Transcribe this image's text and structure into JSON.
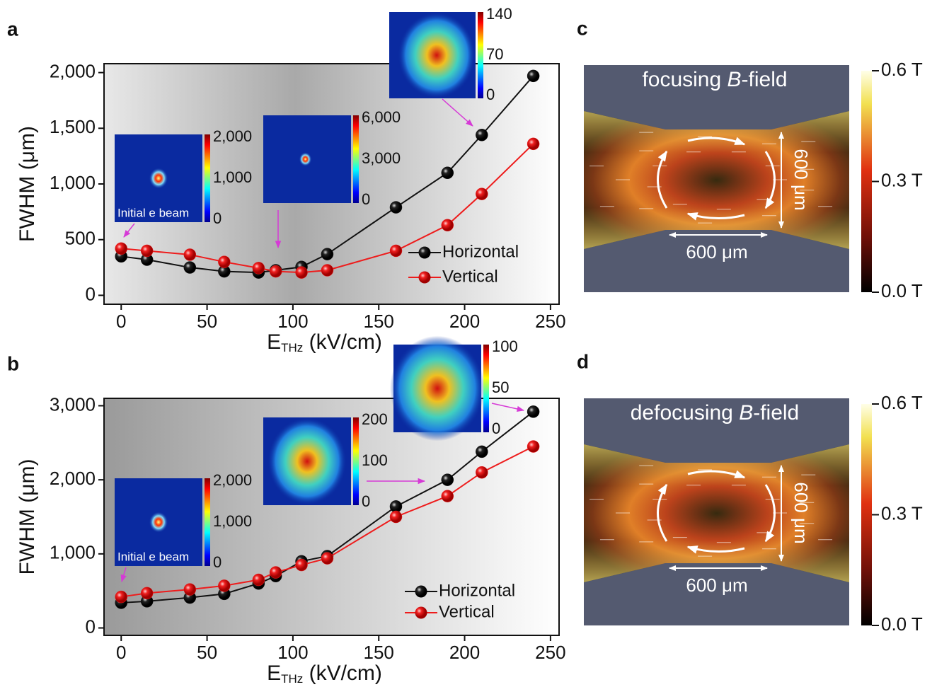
{
  "chart_data": [
    {
      "type": "line",
      "label": "a",
      "ylabel": "FWHM (μm)",
      "xlabel": "E",
      "xlabel_sub": "THz",
      "xlabel_rest": " (kV/cm)",
      "x": [
        0,
        15,
        40,
        60,
        80,
        90,
        105,
        120,
        160,
        190,
        210,
        240
      ],
      "series": [
        {
          "name": "Horizontal",
          "color": "#111111",
          "values": [
            350,
            320,
            250,
            215,
            205,
            225,
            255,
            370,
            790,
            1100,
            1440,
            1970
          ]
        },
        {
          "name": "Vertical",
          "color": "#ee1c1c",
          "values": [
            420,
            400,
            365,
            300,
            245,
            215,
            205,
            225,
            400,
            630,
            910,
            1360
          ]
        }
      ],
      "xlim": [
        -10,
        255
      ],
      "ylim": [
        -80,
        2080
      ],
      "xticks": [
        0,
        50,
        100,
        150,
        200,
        250
      ],
      "yticks": [
        0,
        500,
        {
          "value": 1000,
          "label": "1,000"
        },
        {
          "value": 1500,
          "label": "1,500"
        },
        {
          "value": 2000,
          "label": "2,000"
        }
      ],
      "insets": [
        {
          "ticks": [
            {
              "value": 2000,
              "label": "2,000"
            },
            {
              "value": 1000,
              "label": "1,000"
            },
            0
          ],
          "caption": "Initial e beam"
        },
        {
          "ticks": [
            {
              "value": 6000,
              "label": "6,000"
            },
            {
              "value": 3000,
              "label": "3,000"
            },
            0
          ]
        },
        {
          "ticks": [
            140,
            70,
            0
          ]
        }
      ]
    },
    {
      "type": "line",
      "label": "b",
      "ylabel": "FWHM (μm)",
      "xlabel": "E",
      "xlabel_sub": "THz",
      "xlabel_rest": " (kV/cm)",
      "x": [
        0,
        15,
        40,
        60,
        80,
        90,
        105,
        120,
        160,
        190,
        210,
        240
      ],
      "series": [
        {
          "name": "Horizontal",
          "color": "#111111",
          "values": [
            340,
            360,
            410,
            460,
            600,
            700,
            900,
            970,
            1640,
            2000,
            2380,
            2920
          ]
        },
        {
          "name": "Vertical",
          "color": "#ee1c1c",
          "values": [
            420,
            470,
            520,
            570,
            650,
            750,
            850,
            940,
            1500,
            1780,
            2100,
            2450
          ]
        }
      ],
      "xlim": [
        -10,
        255
      ],
      "ylim": [
        -100,
        3100
      ],
      "xticks": [
        0,
        50,
        100,
        150,
        200,
        250
      ],
      "yticks": [
        0,
        {
          "value": 1000,
          "label": "1,000"
        },
        {
          "value": 2000,
          "label": "2,000"
        },
        {
          "value": 3000,
          "label": "3,000"
        }
      ],
      "insets": [
        {
          "ticks": [
            {
              "value": 2000,
              "label": "2,000"
            },
            {
              "value": 1000,
              "label": "1,000"
            },
            0
          ],
          "caption": "Initial e beam"
        },
        {
          "ticks": [
            200,
            100,
            0
          ]
        },
        {
          "ticks": [
            100,
            50,
            0
          ]
        }
      ]
    }
  ],
  "diagrams": [
    {
      "label": "c",
      "title": [
        "focusing ",
        "B",
        "-field"
      ],
      "width_label": "600 μm",
      "height_label": "600 μm",
      "colorbar_ticks": [
        {
          "value": 0.6,
          "label": "0.6 T"
        },
        {
          "value": 0.3,
          "label": "0.3 T"
        },
        {
          "value": 0.0,
          "label": "0.0 T"
        }
      ]
    },
    {
      "label": "d",
      "title": [
        "defocusing ",
        "B",
        "-field"
      ],
      "width_label": "600 μm",
      "height_label": "600 μm",
      "colorbar_ticks": [
        {
          "value": 0.6,
          "label": "0.6 T"
        },
        {
          "value": 0.3,
          "label": "0.3 T"
        },
        {
          "value": 0.0,
          "label": "0.0 T"
        }
      ]
    }
  ]
}
